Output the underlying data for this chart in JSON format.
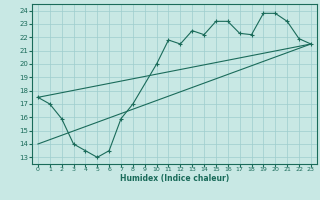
{
  "title": "",
  "xlabel": "Humidex (Indice chaleur)",
  "xlim": [
    -0.5,
    23.5
  ],
  "ylim": [
    12.5,
    24.5
  ],
  "yticks": [
    13,
    14,
    15,
    16,
    17,
    18,
    19,
    20,
    21,
    22,
    23,
    24
  ],
  "xticks": [
    0,
    1,
    2,
    3,
    4,
    5,
    6,
    7,
    8,
    9,
    10,
    11,
    12,
    13,
    14,
    15,
    16,
    17,
    18,
    19,
    20,
    21,
    22,
    23
  ],
  "bg_color": "#c8e8e4",
  "line_color": "#1a6b5a",
  "grid_color": "#9ecece",
  "line1_x": [
    0,
    1,
    2,
    3,
    4,
    5,
    6,
    7,
    8,
    10,
    11,
    12,
    13,
    14,
    15,
    16,
    17,
    18,
    19,
    20,
    21,
    22,
    23
  ],
  "line1_y": [
    17.5,
    17.0,
    15.9,
    14.0,
    13.5,
    13.0,
    13.5,
    15.9,
    17.0,
    20.0,
    21.8,
    21.5,
    22.5,
    22.2,
    23.2,
    23.2,
    22.3,
    22.2,
    23.8,
    23.8,
    23.2,
    21.9,
    21.5
  ],
  "line2_x": [
    0,
    23
  ],
  "line2_y": [
    17.5,
    21.5
  ],
  "line3_x": [
    0,
    23
  ],
  "line3_y": [
    14.0,
    21.5
  ]
}
